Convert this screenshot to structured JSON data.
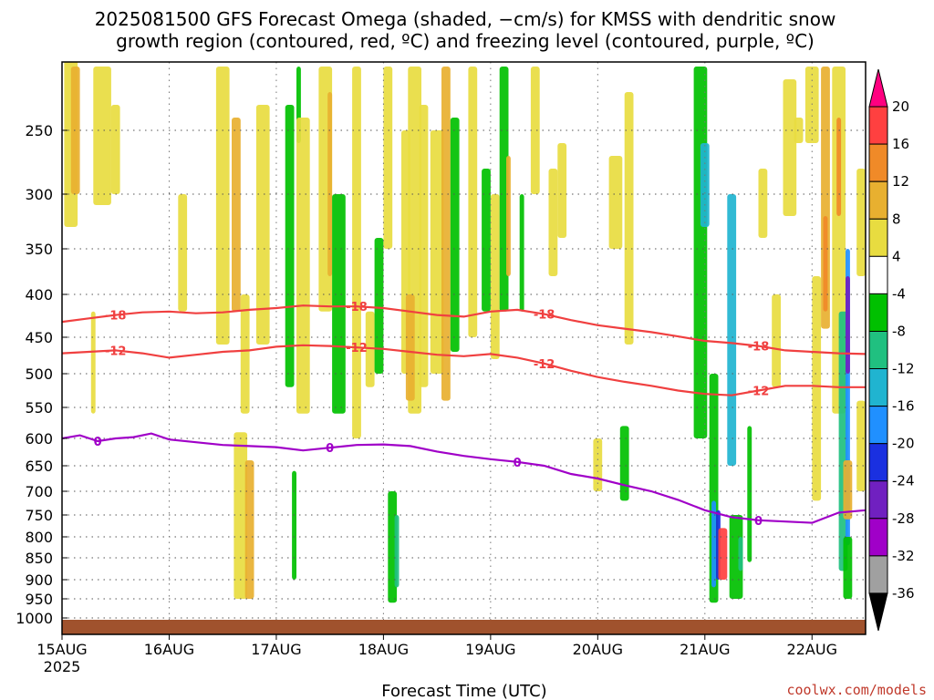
{
  "title_line1": "2025081500 GFS Forecast Omega (shaded, −cm/s) for KMSS with dendritic snow",
  "title_line2": "growth region (contoured, red, ºC) and freezing level (contoured, purple, ºC)",
  "credit": "coolwx.com/models",
  "chart_data": {
    "type": "heatmap",
    "title": "2025081500 GFS Forecast Omega (shaded, −cm/s) for KMSS with dendritic snow growth region (contoured, red, ºC) and freezing level (contoured, purple, ºC)",
    "xlabel": "Forecast Time (UTC)",
    "ylabel": "",
    "x_tick_labels": [
      "15AUG",
      "16AUG",
      "17AUG",
      "18AUG",
      "19AUG",
      "20AUG",
      "21AUG",
      "22AUG"
    ],
    "x_year_label": "2025",
    "xlim_hours": [
      0,
      180
    ],
    "y_tick_labels": [
      250,
      300,
      350,
      400,
      450,
      500,
      550,
      600,
      650,
      700,
      750,
      800,
      850,
      900,
      950,
      1000
    ],
    "ylim_hpa": [
      1025,
      195
    ],
    "colorbar": {
      "labels": [
        20,
        16,
        12,
        8,
        4,
        -4,
        -8,
        -12,
        -16,
        -20,
        -24,
        -28,
        -32,
        -36
      ],
      "colors": [
        "#ff0080",
        "#ff4040",
        "#f08a28",
        "#e8b030",
        "#e8dc40",
        "#ffffff",
        "#00c000",
        "#20c080",
        "#20b4d0",
        "#2090ff",
        "#1a30e0",
        "#7020c0",
        "#a000c8",
        "#a0a0a0",
        "#000000"
      ]
    },
    "contours": [
      {
        "label": "-18",
        "color": "#f04040",
        "points": [
          [
            0,
            432
          ],
          [
            6,
            428
          ],
          [
            12,
            424
          ],
          [
            18,
            421
          ],
          [
            24,
            420
          ],
          [
            30,
            422
          ],
          [
            36,
            421
          ],
          [
            42,
            418
          ],
          [
            48,
            416
          ],
          [
            54,
            413
          ],
          [
            60,
            414
          ],
          [
            66,
            414
          ],
          [
            72,
            416
          ],
          [
            78,
            420
          ],
          [
            84,
            424
          ],
          [
            90,
            426
          ],
          [
            96,
            420
          ],
          [
            102,
            418
          ],
          [
            108,
            423
          ],
          [
            114,
            430
          ],
          [
            120,
            436
          ],
          [
            126,
            440
          ],
          [
            132,
            444
          ],
          [
            138,
            449
          ],
          [
            144,
            455
          ],
          [
            150,
            458
          ],
          [
            156,
            462
          ],
          [
            162,
            468
          ],
          [
            168,
            470
          ],
          [
            174,
            472
          ],
          [
            180,
            473
          ]
        ]
      },
      {
        "label": "-12",
        "color": "#f04040",
        "points": [
          [
            0,
            472
          ],
          [
            6,
            470
          ],
          [
            12,
            468
          ],
          [
            18,
            472
          ],
          [
            24,
            478
          ],
          [
            30,
            474
          ],
          [
            36,
            470
          ],
          [
            42,
            468
          ],
          [
            48,
            463
          ],
          [
            54,
            461
          ],
          [
            60,
            462
          ],
          [
            66,
            464
          ],
          [
            72,
            466
          ],
          [
            78,
            470
          ],
          [
            84,
            474
          ],
          [
            90,
            476
          ],
          [
            96,
            473
          ],
          [
            102,
            478
          ],
          [
            108,
            486
          ],
          [
            114,
            496
          ],
          [
            120,
            505
          ],
          [
            126,
            512
          ],
          [
            132,
            518
          ],
          [
            138,
            525
          ],
          [
            144,
            530
          ],
          [
            150,
            532
          ],
          [
            156,
            525
          ],
          [
            162,
            518
          ],
          [
            168,
            518
          ],
          [
            174,
            520
          ],
          [
            180,
            520
          ]
        ]
      },
      {
        "label": "0",
        "color": "#a000c8",
        "points": [
          [
            0,
            600
          ],
          [
            4,
            595
          ],
          [
            8,
            605
          ],
          [
            12,
            600
          ],
          [
            16,
            598
          ],
          [
            20,
            592
          ],
          [
            24,
            602
          ],
          [
            30,
            607
          ],
          [
            36,
            612
          ],
          [
            42,
            614
          ],
          [
            48,
            616
          ],
          [
            54,
            622
          ],
          [
            60,
            617
          ],
          [
            66,
            612
          ],
          [
            72,
            611
          ],
          [
            78,
            614
          ],
          [
            84,
            624
          ],
          [
            90,
            632
          ],
          [
            96,
            638
          ],
          [
            102,
            643
          ],
          [
            108,
            650
          ],
          [
            114,
            666
          ],
          [
            120,
            675
          ],
          [
            126,
            688
          ],
          [
            132,
            700
          ],
          [
            138,
            718
          ],
          [
            144,
            740
          ],
          [
            150,
            755
          ],
          [
            156,
            762
          ],
          [
            162,
            765
          ],
          [
            168,
            768
          ],
          [
            174,
            745
          ],
          [
            180,
            740
          ]
        ]
      }
    ]
  }
}
